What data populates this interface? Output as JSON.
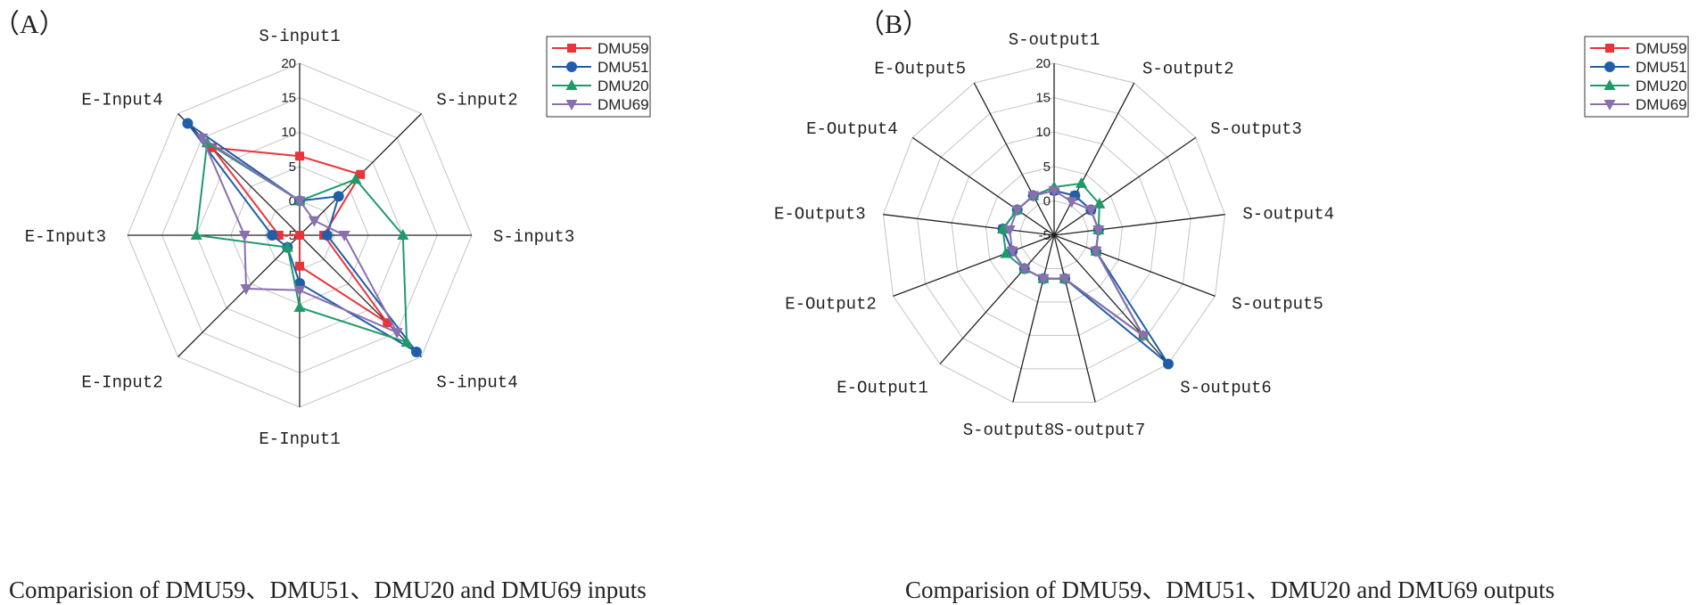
{
  "chart_data": [
    {
      "type": "radar",
      "panel_label": "（A）",
      "caption": "Comparision of DMU59、DMU51、DMU20 and DMU69 inputs",
      "axes": [
        "S-input1",
        "S-input2",
        "S-input3",
        "S-input4",
        "E-Input1",
        "E-Input2",
        "E-Input3",
        "E-Input4"
      ],
      "rlim": [
        -5,
        20
      ],
      "ticks": [
        -5,
        0,
        5,
        10,
        15,
        20
      ],
      "legend_position": "top-right",
      "series": [
        {
          "name": "DMU59",
          "color": "#e8343a",
          "marker": "square",
          "values": [
            6.5,
            7.5,
            -1.5,
            13,
            -0.5,
            -5,
            -2,
            13
          ]
        },
        {
          "name": "DMU51",
          "color": "#1f5fa8",
          "marker": "circle",
          "values": [
            0,
            3,
            -1,
            19,
            2,
            -2.5,
            -1,
            18
          ]
        },
        {
          "name": "DMU20",
          "color": "#1f9a6a",
          "marker": "triangle-up",
          "values": [
            0,
            6.5,
            10,
            17,
            5.5,
            -2.5,
            10,
            14
          ]
        },
        {
          "name": "DMU69",
          "color": "#8a6fb0",
          "marker": "triangle-down",
          "values": [
            0,
            -2,
            1.5,
            15,
            3,
            6,
            3,
            15
          ]
        }
      ]
    },
    {
      "type": "radar",
      "panel_label": "（B）",
      "caption": "Comparision of DMU59、DMU51、DMU20 and DMU69 outputs",
      "axes": [
        "S-output1",
        "S-output2",
        "S-output3",
        "S-output4",
        "S-output5",
        "S-output6",
        "S-output7",
        "S-output8",
        "E-Output1",
        "E-Output2",
        "E-Output3",
        "E-Output4",
        "E-Output5"
      ],
      "rlim": [
        -5,
        20
      ],
      "ticks": [
        -5,
        0,
        5,
        10,
        15,
        20
      ],
      "legend_position": "top-right",
      "series": [
        {
          "name": "DMU59",
          "color": "#e8343a",
          "marker": "square",
          "values": [
            1.5,
            1.5,
            1.5,
            1.5,
            1.5,
            14.5,
            1.5,
            1.5,
            1.5,
            1.5,
            2.5,
            1.5,
            1.5
          ]
        },
        {
          "name": "DMU51",
          "color": "#1f5fa8",
          "marker": "circle",
          "values": [
            1.5,
            1.5,
            1.5,
            1.5,
            1.5,
            20,
            1.5,
            1.5,
            1.5,
            1.5,
            2.5,
            1.5,
            1.5
          ]
        },
        {
          "name": "DMU20",
          "color": "#1f9a6a",
          "marker": "triangle-up",
          "values": [
            2,
            3.5,
            3,
            1.5,
            1.5,
            14.5,
            1.5,
            1.5,
            1.5,
            2.5,
            2.5,
            1.5,
            1.5
          ]
        },
        {
          "name": "DMU69",
          "color": "#8a6fb0",
          "marker": "triangle-down",
          "values": [
            1.5,
            0.5,
            1.5,
            1.5,
            1.5,
            14.5,
            1.5,
            1.5,
            1.5,
            1.5,
            1.5,
            1.5,
            1.5
          ]
        }
      ]
    }
  ]
}
